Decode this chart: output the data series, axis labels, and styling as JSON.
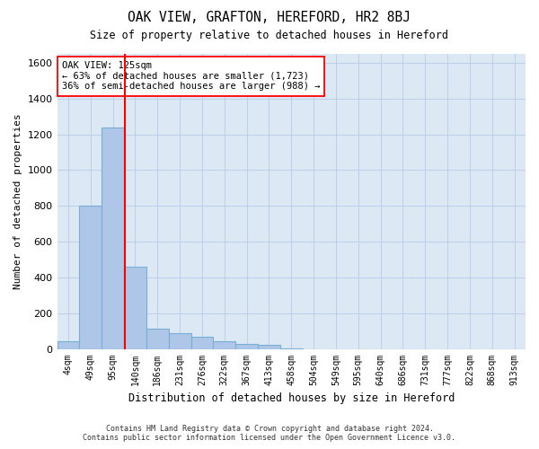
{
  "title": "OAK VIEW, GRAFTON, HEREFORD, HR2 8BJ",
  "subtitle": "Size of property relative to detached houses in Hereford",
  "xlabel": "Distribution of detached houses by size in Hereford",
  "ylabel": "Number of detached properties",
  "footer_line1": "Contains HM Land Registry data © Crown copyright and database right 2024.",
  "footer_line2": "Contains public sector information licensed under the Open Government Licence v3.0.",
  "annotation_title": "OAK VIEW: 125sqm",
  "annotation_line1": "← 63% of detached houses are smaller (1,723)",
  "annotation_line2": "36% of semi-detached houses are larger (988) →",
  "bin_labels": [
    "4sqm",
    "49sqm",
    "95sqm",
    "140sqm",
    "186sqm",
    "231sqm",
    "276sqm",
    "322sqm",
    "367sqm",
    "413sqm",
    "458sqm",
    "504sqm",
    "549sqm",
    "595sqm",
    "640sqm",
    "686sqm",
    "731sqm",
    "777sqm",
    "822sqm",
    "868sqm",
    "913sqm"
  ],
  "bar_values": [
    45,
    800,
    1240,
    460,
    115,
    90,
    70,
    45,
    30,
    25,
    5,
    0,
    0,
    0,
    0,
    0,
    0,
    0,
    0,
    0,
    0
  ],
  "bar_color": "#aec6e8",
  "bar_edge_color": "#7aafd4",
  "background_color": "#dce9f5",
  "grid_color": "#c0d0e8",
  "red_line_x": 2.55,
  "ylim": [
    0,
    1650
  ],
  "yticks": [
    0,
    200,
    400,
    600,
    800,
    1000,
    1200,
    1400,
    1600
  ]
}
